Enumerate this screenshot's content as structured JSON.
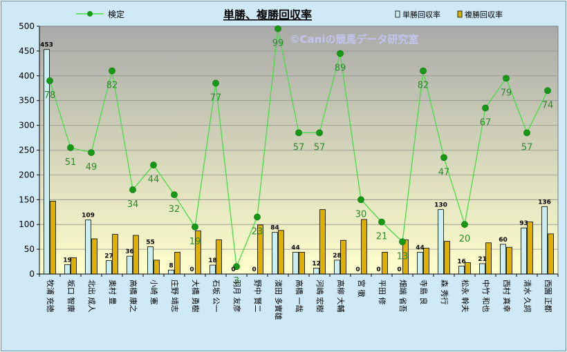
{
  "chart_data": {
    "type": "bar",
    "title": "単勝、複勝回収率",
    "watermark": "©Caniの競馬データ研究室",
    "ylim": [
      0,
      500
    ],
    "yticks": [
      0,
      50,
      100,
      150,
      200,
      250,
      300,
      350,
      400,
      450,
      500
    ],
    "legend_line": "検定",
    "categories": [
      "牧浦 充徳",
      "坂口 智康",
      "北出 成人",
      "奥村 豊",
      "高橋 康之",
      "小崎 憲",
      "庄野 靖志",
      "大橋 勇樹",
      "石坂 公一",
      "羽月 友彦",
      "野中 賢二",
      "濱田 多實雄",
      "高橋 一哉",
      "河嶋 宏樹",
      "高柳 大輔",
      "宮 徹",
      "平田 修",
      "畑端 省吾",
      "寺島 良",
      "森 秀行",
      "松永 幹夫",
      "中竹 和也",
      "西村 真幸",
      "清水 久詞",
      "西園 正都"
    ],
    "series": [
      {
        "name": "単勝回収率",
        "kind": "bar",
        "values": [
          453,
          19,
          109,
          27,
          36,
          55,
          8,
          0,
          18,
          0,
          0,
          84,
          44,
          12,
          28,
          0,
          0,
          0,
          44,
          130,
          16,
          21,
          60,
          93,
          136
        ]
      },
      {
        "name": "複勝回収率",
        "kind": "bar",
        "values": [
          147,
          33,
          71,
          80,
          78,
          28,
          44,
          87,
          69,
          0,
          99,
          88,
          44,
          130,
          68,
          110,
          44,
          69,
          52,
          66,
          23,
          63,
          54,
          105,
          81
        ]
      },
      {
        "name": "検定",
        "kind": "line",
        "values": [
          78,
          51,
          49,
          82,
          34,
          44,
          32,
          19,
          77,
          3,
          23,
          99,
          57,
          57,
          89,
          30,
          21,
          13,
          82,
          47,
          20,
          67,
          79,
          57,
          74
        ]
      }
    ],
    "colors": {
      "win_bar": "#cdeef2",
      "place_bar": "#e0b000",
      "line": "#44dd44",
      "marker": "#169a16",
      "line_label": "#2a8a2a",
      "bg_top": "#a9a9a9",
      "bg_bottom": "#ffffcc"
    }
  }
}
